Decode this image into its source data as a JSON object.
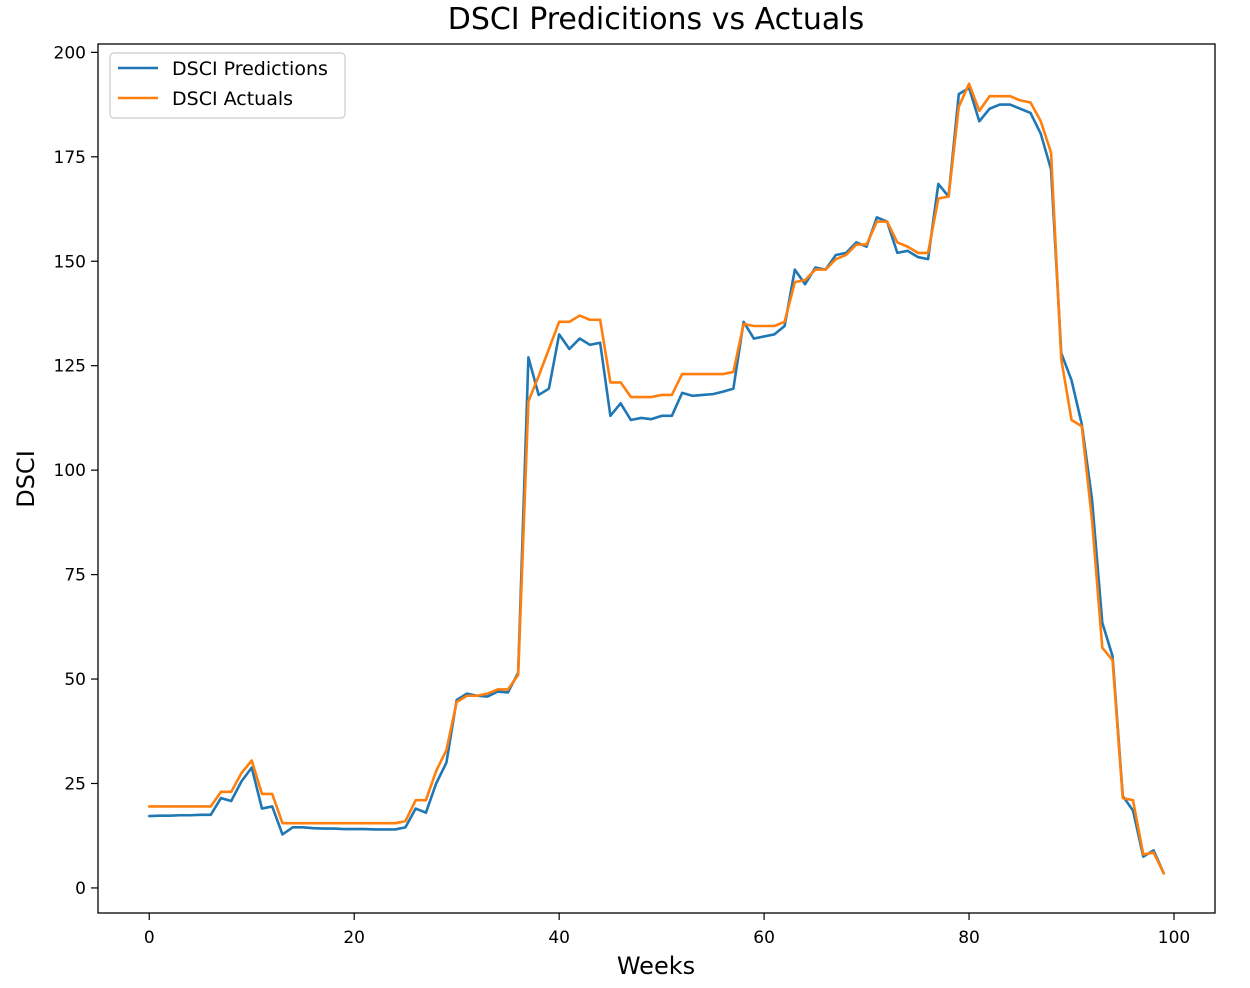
{
  "chart_data": {
    "type": "line",
    "title": "DSCI Predicitions vs Actuals",
    "xlabel": "Weeks",
    "ylabel": "DSCI",
    "xlim": [
      -5,
      104
    ],
    "ylim": [
      -6,
      202
    ],
    "xticks": [
      0,
      20,
      40,
      60,
      80,
      100
    ],
    "yticks": [
      0,
      25,
      50,
      75,
      100,
      125,
      150,
      175,
      200
    ],
    "grid": false,
    "legend_position": "upper-left",
    "x": [
      0,
      1,
      2,
      3,
      4,
      5,
      6,
      7,
      8,
      9,
      10,
      11,
      12,
      13,
      14,
      15,
      16,
      17,
      18,
      19,
      20,
      21,
      22,
      23,
      24,
      25,
      26,
      27,
      28,
      29,
      30,
      31,
      32,
      33,
      34,
      35,
      36,
      37,
      38,
      39,
      40,
      41,
      42,
      43,
      44,
      45,
      46,
      47,
      48,
      49,
      50,
      51,
      52,
      53,
      54,
      55,
      56,
      57,
      58,
      59,
      60,
      61,
      62,
      63,
      64,
      65,
      66,
      67,
      68,
      69,
      70,
      71,
      72,
      73,
      74,
      75,
      76,
      77,
      78,
      79,
      80,
      81,
      82,
      83,
      84,
      85,
      86,
      87,
      88,
      89,
      90,
      91,
      92,
      93,
      94,
      95,
      96,
      97,
      98,
      99
    ],
    "series": [
      {
        "name": "DSCI Predictions",
        "color": "#1f77b4",
        "values": [
          17.2,
          17.3,
          17.3,
          17.4,
          17.4,
          17.5,
          17.5,
          21.5,
          20.8,
          25.5,
          28.8,
          19.0,
          19.5,
          12.8,
          14.5,
          14.5,
          14.3,
          14.2,
          14.2,
          14.1,
          14.1,
          14.1,
          14.0,
          14.0,
          14.0,
          14.5,
          19.0,
          18.0,
          25.0,
          30.0,
          45.0,
          46.5,
          46.0,
          45.8,
          47.0,
          46.8,
          51.5,
          127.0,
          118.0,
          119.5,
          132.5,
          129.0,
          131.5,
          130.0,
          130.5,
          113.0,
          116.0,
          112.0,
          112.5,
          112.2,
          113.0,
          113.0,
          118.5,
          117.8,
          118.0,
          118.2,
          118.8,
          119.5,
          135.5,
          131.5,
          132.0,
          132.5,
          134.5,
          148.0,
          144.5,
          148.5,
          148.0,
          151.5,
          152.0,
          154.5,
          153.5,
          160.5,
          159.5,
          152.0,
          152.5,
          151.0,
          150.5,
          168.5,
          165.5,
          190.0,
          191.5,
          183.5,
          186.5,
          187.5,
          187.5,
          186.5,
          185.5,
          180.5,
          172.0,
          128.0,
          121.5,
          111.0,
          93.0,
          63.5,
          55.5,
          22.0,
          18.5,
          7.5,
          9.0,
          3.5
        ]
      },
      {
        "name": "DSCI Actuals",
        "color": "#ff7f0e",
        "values": [
          19.5,
          19.5,
          19.5,
          19.5,
          19.5,
          19.5,
          19.5,
          23.0,
          23.0,
          27.5,
          30.5,
          22.5,
          22.5,
          15.5,
          15.5,
          15.5,
          15.5,
          15.5,
          15.5,
          15.5,
          15.5,
          15.5,
          15.5,
          15.5,
          15.5,
          16.0,
          21.0,
          21.0,
          28.0,
          33.0,
          44.5,
          46.0,
          46.0,
          46.5,
          47.5,
          47.5,
          51.0,
          116.5,
          122.5,
          129.0,
          135.5,
          135.5,
          137.0,
          136.0,
          136.0,
          121.0,
          121.0,
          117.5,
          117.5,
          117.5,
          118.0,
          118.0,
          123.0,
          123.0,
          123.0,
          123.0,
          123.0,
          123.5,
          135.0,
          134.5,
          134.5,
          134.5,
          135.5,
          145.0,
          145.5,
          148.0,
          148.0,
          150.5,
          151.5,
          154.0,
          154.0,
          159.5,
          159.5,
          154.5,
          153.5,
          152.0,
          152.0,
          165.0,
          165.5,
          187.0,
          192.5,
          186.0,
          189.5,
          189.5,
          189.5,
          188.5,
          188.0,
          183.5,
          176.0,
          126.5,
          112.0,
          110.5,
          88.0,
          57.5,
          54.5,
          21.5,
          21.0,
          8.0,
          8.5,
          3.5
        ]
      }
    ]
  }
}
